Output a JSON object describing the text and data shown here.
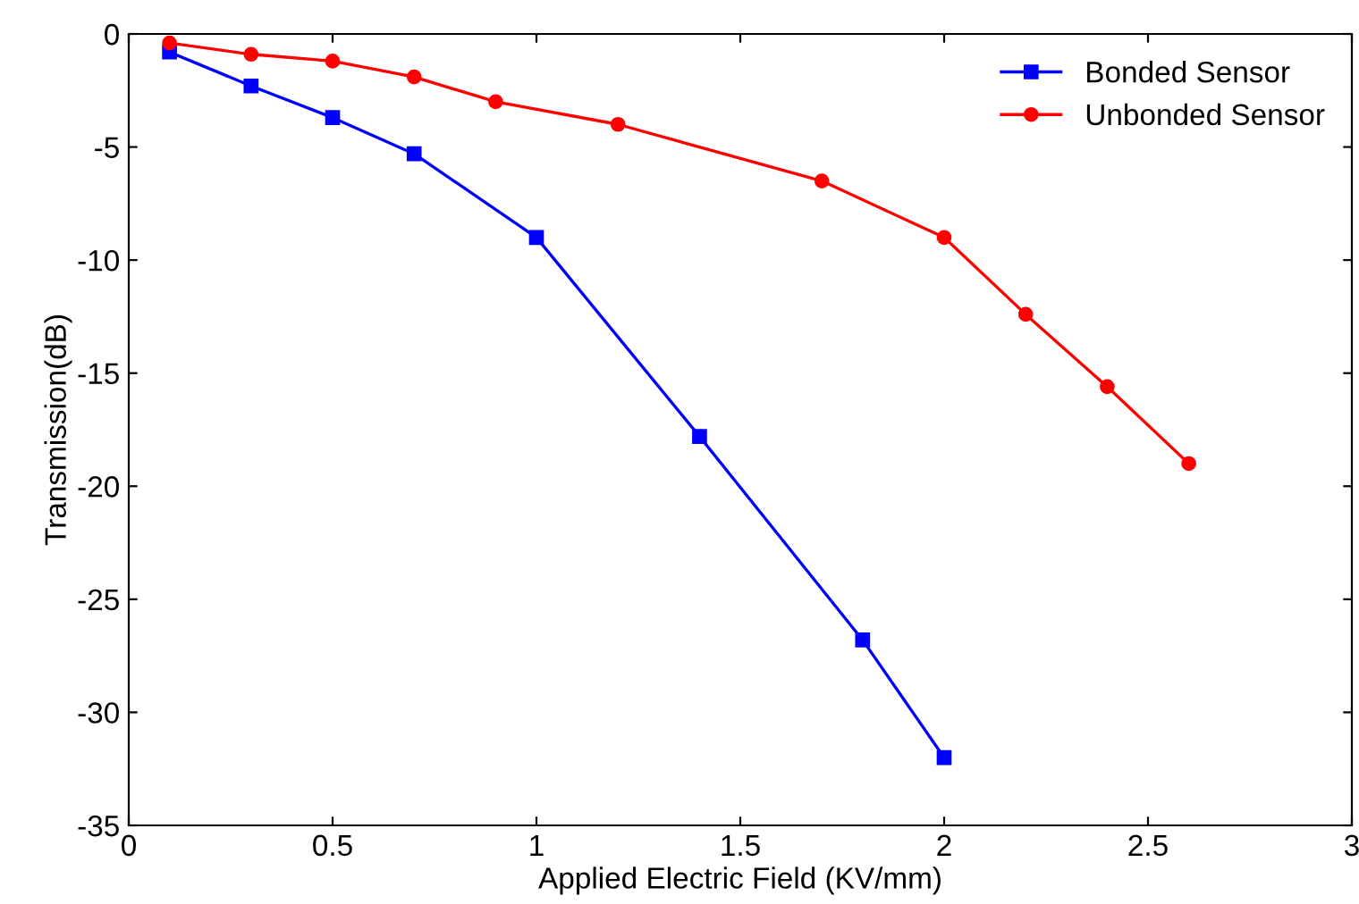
{
  "chart_data": {
    "type": "line",
    "xlabel": "Applied Electric Field (KV/mm)",
    "ylabel": "Transmission(dB)",
    "xlim": [
      0,
      3
    ],
    "xticks": [
      0,
      0.5,
      1,
      1.5,
      2,
      2.5,
      3
    ],
    "ylim": [
      -35,
      0
    ],
    "yticks": [
      -35,
      -30,
      -25,
      -20,
      -15,
      -10,
      -5,
      0
    ],
    "grid": false,
    "legend": "top right",
    "line_style": "solid",
    "series": [
      {
        "name": "Bonded Sensor",
        "color": "#0000ff",
        "marker": "square",
        "x": [
          0.1,
          0.3,
          0.5,
          0.7,
          1,
          1.4,
          1.8,
          2
        ],
        "values": [
          -0.8,
          -2.3,
          -3.7,
          -5.3,
          -9.0,
          -17.8,
          -26.8,
          -32.0
        ]
      },
      {
        "name": "Unbonded Sensor",
        "color": "#ff0000",
        "marker": "circle",
        "x": [
          0.1,
          0.3,
          0.5,
          0.7,
          0.9,
          1.2,
          1.7,
          2,
          2.2,
          2.4,
          2.6
        ],
        "values": [
          -0.4,
          -0.9,
          -1.2,
          -1.9,
          -3.0,
          -4.0,
          -6.5,
          -9.0,
          -12.4,
          -15.6,
          -19.0
        ]
      }
    ]
  }
}
